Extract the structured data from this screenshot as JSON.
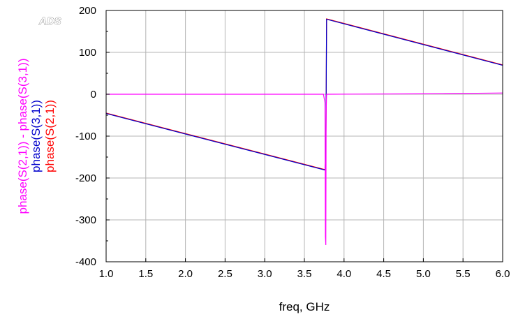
{
  "logo_text": "ADS",
  "chart_data": {
    "type": "line",
    "xlabel": "freq, GHz",
    "ylabels": [
      {
        "text": "phase(S(2,1)) - phase(S(3,1))",
        "color": "#ff00ff"
      },
      {
        "text": "phase(S(3,1))",
        "color": "#0000cc"
      },
      {
        "text": "phase(S(2,1))",
        "color": "#ff0000"
      }
    ],
    "xlim": [
      1.0,
      6.0
    ],
    "ylim": [
      -400,
      200
    ],
    "x_ticks": [
      1.0,
      1.5,
      2.0,
      2.5,
      3.0,
      3.5,
      4.0,
      4.5,
      5.0,
      5.5,
      6.0
    ],
    "x_tick_labels": [
      "1.0",
      "1.5",
      "2.0",
      "2.5",
      "3.0",
      "3.5",
      "4.0",
      "4.5",
      "5.0",
      "5.5",
      "6.0"
    ],
    "y_ticks": [
      -400,
      -300,
      -200,
      -100,
      0,
      100,
      200
    ],
    "y_tick_labels": [
      "-400",
      "-300",
      "-200",
      "-100",
      "0",
      "100",
      "200"
    ],
    "grid": true,
    "legend": "none",
    "series": [
      {
        "name": "phase(S(2,1))",
        "color": "#ff0000",
        "x": [
          1.0,
          3.76,
          3.77,
          3.78,
          6.0
        ],
        "y": [
          -45,
          -180,
          -150,
          180,
          70
        ]
      },
      {
        "name": "phase(S(3,1))",
        "color": "#0000cc",
        "x": [
          1.0,
          3.76,
          3.77,
          3.78,
          6.0
        ],
        "y": [
          -46,
          -181,
          -150,
          179,
          69
        ]
      },
      {
        "name": "phase(S(2,1)) - phase(S(3,1))",
        "color": "#ff00ff",
        "x": [
          1.0,
          3.74,
          3.76,
          3.765,
          3.77,
          3.775,
          3.78,
          3.79,
          5.0,
          6.0
        ],
        "y": [
          0,
          0,
          -20,
          -340,
          -360,
          -40,
          0,
          0,
          1,
          3
        ]
      }
    ]
  }
}
